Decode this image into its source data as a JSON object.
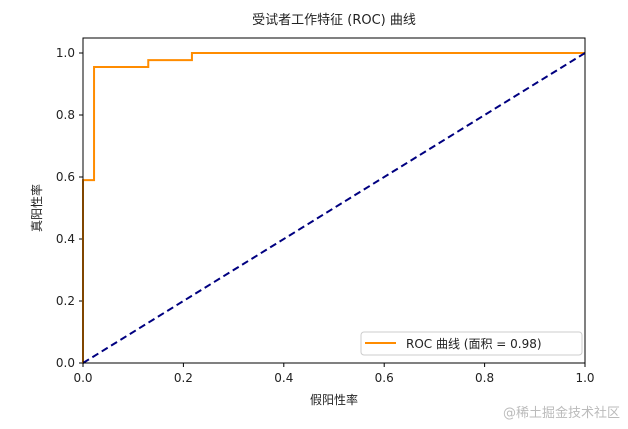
{
  "chart_data": {
    "type": "line",
    "title": "受试者工作特征 (ROC) 曲线",
    "xlabel": "假阳性率",
    "ylabel": "真阳性率",
    "xlim": [
      0.0,
      1.0
    ],
    "ylim": [
      0.0,
      1.05
    ],
    "xticks": [
      "0.0",
      "0.2",
      "0.4",
      "0.6",
      "0.8",
      "1.0"
    ],
    "yticks": [
      "0.0",
      "0.2",
      "0.4",
      "0.6",
      "0.8",
      "1.0"
    ],
    "grid": false,
    "legend_placement": "lower-right",
    "series": [
      {
        "name": "ROC 曲线 (面积 = 0.98)",
        "color": "#ff8c00",
        "style": "solid",
        "x": [
          0,
          0,
          0.022,
          0.022,
          0.13,
          0.13,
          0.217,
          0.217,
          1.0
        ],
        "y": [
          0,
          0.59,
          0.59,
          0.955,
          0.955,
          0.977,
          0.977,
          1.0,
          1.0
        ]
      },
      {
        "color": "#000080",
        "style": "dashed",
        "x": [
          0,
          1
        ],
        "y": [
          0,
          1
        ]
      }
    ]
  },
  "watermark": "@稀土掘金技术社区"
}
